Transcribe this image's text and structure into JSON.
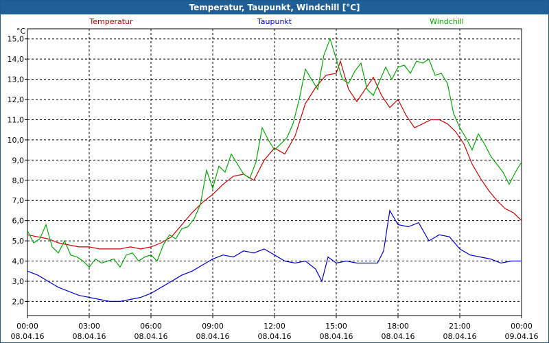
{
  "window_title": "Temperatur, Taupunkt, Windchill [°C]",
  "chart_data": {
    "type": "line",
    "title": "Temperatur, Taupunkt, Windchill [°C]",
    "ylabel": "°C",
    "ylim": [
      1.3,
      15.5
    ],
    "xlim_hours": [
      0,
      24
    ],
    "grid": true,
    "legend_position": "top",
    "yticks": [
      2,
      3,
      4,
      5,
      6,
      7,
      8,
      9,
      10,
      11,
      12,
      13,
      14,
      15
    ],
    "ytick_labels": [
      "2,0",
      "3,0",
      "4,0",
      "5,0",
      "6,0",
      "7,0",
      "8,0",
      "9,0",
      "10,0",
      "11,0",
      "12,0",
      "13,0",
      "14,0",
      "15,0"
    ],
    "xticks": [
      {
        "time": "00:00",
        "date": "08.04.16",
        "h": 0
      },
      {
        "time": "03:00",
        "date": "08.04.16",
        "h": 3
      },
      {
        "time": "06:00",
        "date": "08.04.16",
        "h": 6
      },
      {
        "time": "09:00",
        "date": "08.04.16",
        "h": 9
      },
      {
        "time": "12:00",
        "date": "08.04.16",
        "h": 12
      },
      {
        "time": "15:00",
        "date": "08.04.16",
        "h": 15
      },
      {
        "time": "18:00",
        "date": "08.04.16",
        "h": 18
      },
      {
        "time": "21:00",
        "date": "08.04.16",
        "h": 21
      },
      {
        "time": "00:00",
        "date": "09.04.16",
        "h": 24
      }
    ],
    "series": [
      {
        "name": "Temperatur",
        "color": "#cc0000",
        "points": [
          [
            0,
            5.3
          ],
          [
            0.5,
            5.2
          ],
          [
            1,
            5.1
          ],
          [
            1.5,
            4.9
          ],
          [
            2,
            4.8
          ],
          [
            2.5,
            4.7
          ],
          [
            3,
            4.7
          ],
          [
            3.5,
            4.6
          ],
          [
            4,
            4.6
          ],
          [
            4.5,
            4.6
          ],
          [
            5,
            4.7
          ],
          [
            5.5,
            4.6
          ],
          [
            6,
            4.7
          ],
          [
            6.5,
            4.9
          ],
          [
            7,
            5.2
          ],
          [
            7.5,
            5.8
          ],
          [
            8,
            6.4
          ],
          [
            8.5,
            6.9
          ],
          [
            9,
            7.3
          ],
          [
            9.5,
            7.8
          ],
          [
            10,
            8.2
          ],
          [
            10.5,
            8.3
          ],
          [
            11,
            8.0
          ],
          [
            11.5,
            9.0
          ],
          [
            12,
            9.6
          ],
          [
            12.5,
            9.3
          ],
          [
            13,
            10.2
          ],
          [
            13.5,
            11.8
          ],
          [
            14,
            12.6
          ],
          [
            14.5,
            13.2
          ],
          [
            15,
            13.3
          ],
          [
            15.2,
            13.9
          ],
          [
            15.6,
            12.5
          ],
          [
            16,
            11.9
          ],
          [
            16.4,
            12.5
          ],
          [
            16.8,
            13.1
          ],
          [
            17.2,
            12.2
          ],
          [
            17.6,
            11.6
          ],
          [
            18,
            12.0
          ],
          [
            18.4,
            11.2
          ],
          [
            18.8,
            10.6
          ],
          [
            19.2,
            10.8
          ],
          [
            19.6,
            11.0
          ],
          [
            20,
            11.0
          ],
          [
            20.4,
            10.8
          ],
          [
            20.8,
            10.4
          ],
          [
            21.2,
            9.8
          ],
          [
            21.6,
            8.8
          ],
          [
            22,
            8.1
          ],
          [
            22.4,
            7.5
          ],
          [
            22.8,
            7.0
          ],
          [
            23.2,
            6.6
          ],
          [
            23.6,
            6.4
          ],
          [
            24,
            6.0
          ]
        ]
      },
      {
        "name": "Taupunkt",
        "color": "#0000cc",
        "points": [
          [
            0,
            3.5
          ],
          [
            0.5,
            3.3
          ],
          [
            1,
            3.0
          ],
          [
            1.5,
            2.7
          ],
          [
            2,
            2.5
          ],
          [
            2.5,
            2.3
          ],
          [
            3,
            2.2
          ],
          [
            3.5,
            2.1
          ],
          [
            4,
            2.0
          ],
          [
            4.5,
            2.0
          ],
          [
            5,
            2.1
          ],
          [
            5.5,
            2.2
          ],
          [
            6,
            2.4
          ],
          [
            6.5,
            2.7
          ],
          [
            7,
            3.0
          ],
          [
            7.5,
            3.3
          ],
          [
            8,
            3.5
          ],
          [
            8.5,
            3.8
          ],
          [
            9,
            4.1
          ],
          [
            9.5,
            4.3
          ],
          [
            10,
            4.2
          ],
          [
            10.5,
            4.5
          ],
          [
            11,
            4.4
          ],
          [
            11.5,
            4.6
          ],
          [
            12,
            4.3
          ],
          [
            12.5,
            4.0
          ],
          [
            13,
            3.9
          ],
          [
            13.5,
            4.0
          ],
          [
            14,
            3.6
          ],
          [
            14.3,
            3.0
          ],
          [
            14.6,
            4.2
          ],
          [
            15,
            3.9
          ],
          [
            15.5,
            4.0
          ],
          [
            16,
            3.9
          ],
          [
            16.5,
            3.9
          ],
          [
            17,
            3.9
          ],
          [
            17.3,
            4.5
          ],
          [
            17.6,
            6.5
          ],
          [
            18,
            5.8
          ],
          [
            18.5,
            5.7
          ],
          [
            19,
            5.9
          ],
          [
            19.5,
            5.0
          ],
          [
            20,
            5.3
          ],
          [
            20.5,
            5.2
          ],
          [
            21,
            4.6
          ],
          [
            21.5,
            4.3
          ],
          [
            22,
            4.2
          ],
          [
            22.5,
            4.1
          ],
          [
            23,
            3.9
          ],
          [
            23.5,
            4.0
          ],
          [
            24,
            4.0
          ]
        ]
      },
      {
        "name": "Windchill",
        "color": "#00aa00",
        "points": [
          [
            0,
            5.5
          ],
          [
            0.3,
            4.9
          ],
          [
            0.6,
            5.1
          ],
          [
            0.9,
            5.8
          ],
          [
            1.2,
            4.7
          ],
          [
            1.5,
            4.4
          ],
          [
            1.8,
            5.0
          ],
          [
            2.1,
            4.3
          ],
          [
            2.4,
            4.2
          ],
          [
            2.7,
            4.0
          ],
          [
            3,
            3.7
          ],
          [
            3.3,
            4.1
          ],
          [
            3.6,
            3.9
          ],
          [
            3.9,
            4.0
          ],
          [
            4.2,
            4.1
          ],
          [
            4.5,
            3.7
          ],
          [
            4.8,
            4.3
          ],
          [
            5.1,
            4.4
          ],
          [
            5.4,
            4.0
          ],
          [
            5.7,
            4.2
          ],
          [
            6,
            4.3
          ],
          [
            6.3,
            4.0
          ],
          [
            6.6,
            4.8
          ],
          [
            6.9,
            5.3
          ],
          [
            7.2,
            5.1
          ],
          [
            7.5,
            5.6
          ],
          [
            7.8,
            5.7
          ],
          [
            8.1,
            6.1
          ],
          [
            8.4,
            6.8
          ],
          [
            8.7,
            8.5
          ],
          [
            9,
            7.6
          ],
          [
            9.3,
            8.7
          ],
          [
            9.6,
            8.4
          ],
          [
            9.9,
            9.3
          ],
          [
            10.2,
            8.8
          ],
          [
            10.5,
            8.3
          ],
          [
            10.8,
            8.1
          ],
          [
            11.1,
            8.9
          ],
          [
            11.4,
            10.6
          ],
          [
            11.7,
            10.0
          ],
          [
            12,
            9.5
          ],
          [
            12.3,
            9.8
          ],
          [
            12.6,
            10.1
          ],
          [
            12.9,
            10.8
          ],
          [
            13.2,
            12.0
          ],
          [
            13.5,
            13.5
          ],
          [
            13.8,
            13.0
          ],
          [
            14.1,
            12.5
          ],
          [
            14.4,
            14.2
          ],
          [
            14.7,
            15.0
          ],
          [
            15,
            14.0
          ],
          [
            15.3,
            13.0
          ],
          [
            15.6,
            12.8
          ],
          [
            15.9,
            13.4
          ],
          [
            16.2,
            13.8
          ],
          [
            16.5,
            12.5
          ],
          [
            16.8,
            12.2
          ],
          [
            17.1,
            12.9
          ],
          [
            17.4,
            13.6
          ],
          [
            17.7,
            13.0
          ],
          [
            18,
            13.6
          ],
          [
            18.3,
            13.7
          ],
          [
            18.6,
            13.3
          ],
          [
            18.9,
            13.9
          ],
          [
            19.2,
            13.8
          ],
          [
            19.5,
            14.0
          ],
          [
            19.8,
            13.2
          ],
          [
            20.1,
            13.3
          ],
          [
            20.4,
            12.8
          ],
          [
            20.7,
            11.3
          ],
          [
            21,
            10.6
          ],
          [
            21.3,
            10.1
          ],
          [
            21.6,
            9.5
          ],
          [
            21.9,
            10.3
          ],
          [
            22.2,
            9.8
          ],
          [
            22.5,
            9.2
          ],
          [
            22.8,
            8.8
          ],
          [
            23.1,
            8.4
          ],
          [
            23.4,
            7.8
          ],
          [
            23.7,
            8.4
          ],
          [
            24,
            8.9
          ]
        ]
      }
    ]
  }
}
